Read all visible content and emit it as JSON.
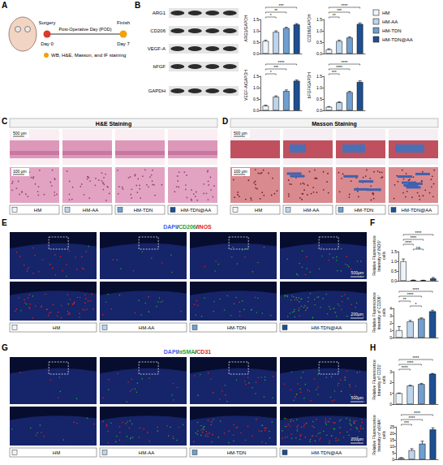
{
  "figure": {
    "panel_A": {
      "letter": "A",
      "start_event": "Surgery",
      "timeline": "Post-Operative Day (POD)",
      "end_event": "Finish",
      "start_day": "Day 0",
      "end_day": "Day 7",
      "assays": "WB, H&E, Masson, and IF staining"
    },
    "panel_B": {
      "letter": "B",
      "blot_rows": [
        "ARG1",
        "CD206",
        "VEGF-A",
        "bFGF",
        "GAPDH"
      ]
    },
    "legend": [
      {
        "name": "HM",
        "color": "#eef4fb"
      },
      {
        "name": "HM-AA",
        "color": "#bcd4ec"
      },
      {
        "name": "HM-TDN",
        "color": "#6f9fd0"
      },
      {
        "name": "HM-TDN@AA",
        "color": "#1d4f91"
      }
    ],
    "panel_C": {
      "letter": "C",
      "title": "H&E Staining",
      "scale_bars": [
        "500 μm",
        "100 μm"
      ]
    },
    "panel_D": {
      "letter": "D",
      "title": "Masson Staining",
      "scale_bars": [
        "500 μm",
        "100 μm"
      ]
    },
    "panel_E": {
      "letter": "E",
      "title": [
        {
          "text": "DAPI",
          "color": "#3d5bff"
        },
        {
          "text": "/",
          "color": "#000000"
        },
        {
          "text": "CD206",
          "color": "#1fa32a"
        },
        {
          "text": "/",
          "color": "#000000"
        },
        {
          "text": "iNOS",
          "color": "#e0241b"
        }
      ],
      "scale_bars": [
        "500μm",
        "200μm"
      ]
    },
    "panel_F": {
      "letter": "F"
    },
    "panel_G": {
      "letter": "G",
      "title": [
        {
          "text": "DAPI",
          "color": "#3d5bff"
        },
        {
          "text": "/",
          "color": "#000000"
        },
        {
          "text": "αSMA",
          "color": "#1fa32a"
        },
        {
          "text": "/",
          "color": "#000000"
        },
        {
          "text": "CD31",
          "color": "#e0241b"
        }
      ],
      "scale_bars": [
        "500μm",
        "200μm"
      ]
    },
    "panel_H": {
      "letter": "H"
    }
  },
  "chart_data": [
    {
      "type": "bar",
      "y_label": "ARG1/GAPDH",
      "categories": [
        "HM",
        "HM-AA",
        "HM-TDN",
        "HM-TDN@AA"
      ],
      "values": [
        0.55,
        0.95,
        1.12,
        1.28
      ],
      "errors": [
        0.04,
        0.05,
        0.04,
        0.04
      ],
      "colors": [
        "#eef4fb",
        "#bcd4ec",
        "#6f9fd0",
        "#1d4f91"
      ],
      "ylim": [
        0,
        1.5
      ],
      "yticks": [
        {
          "value": 0,
          "label": "0.0"
        },
        {
          "value": 0.5,
          "label": "0.5"
        },
        {
          "value": 1,
          "label": "1.0"
        },
        {
          "value": 1.5,
          "label": "1.5"
        }
      ],
      "grid": false,
      "tick_labels": "y",
      "significance": [
        {
          "groups": [
            "HM",
            "HM-AA"
          ],
          "label": "*"
        },
        {
          "groups": [
            "HM",
            "HM-TDN"
          ],
          "label": "**"
        },
        {
          "groups": [
            "HM",
            "HM-TDN@AA"
          ],
          "label": "***"
        }
      ]
    },
    {
      "type": "bar",
      "y_label": "CD206/GAPDH",
      "categories": [
        "HM",
        "HM-AA",
        "HM-TDN",
        "HM-TDN@AA"
      ],
      "values": [
        0.18,
        0.55,
        0.7,
        1.3
      ],
      "errors": [
        0.03,
        0.04,
        0.04,
        0.05
      ],
      "colors": [
        "#eef4fb",
        "#bcd4ec",
        "#6f9fd0",
        "#1d4f91"
      ],
      "ylim": [
        0,
        1.5
      ],
      "yticks": [
        {
          "value": 0,
          "label": "0.0"
        },
        {
          "value": 0.5,
          "label": "0.5"
        },
        {
          "value": 1,
          "label": "1.0"
        },
        {
          "value": 1.5,
          "label": "1.5"
        }
      ],
      "grid": false,
      "tick_labels": "y",
      "significance": [
        {
          "groups": [
            "HM",
            "HM-AA"
          ],
          "label": "**"
        },
        {
          "groups": [
            "HM",
            "HM-TDN"
          ],
          "label": "***"
        },
        {
          "groups": [
            "HM",
            "HM-TDN@AA"
          ],
          "label": "****"
        }
      ]
    },
    {
      "type": "bar",
      "y_label": "VEGF-A/GAPDH",
      "categories": [
        "HM",
        "HM-AA",
        "HM-TDN",
        "HM-TDN@AA"
      ],
      "values": [
        0.2,
        0.6,
        0.85,
        1.3
      ],
      "errors": [
        0.03,
        0.04,
        0.05,
        0.04
      ],
      "colors": [
        "#eef4fb",
        "#bcd4ec",
        "#6f9fd0",
        "#1d4f91"
      ],
      "ylim": [
        0,
        1.5
      ],
      "yticks": [
        {
          "value": 0,
          "label": "0.0"
        },
        {
          "value": 0.5,
          "label": "0.5"
        },
        {
          "value": 1,
          "label": "1.0"
        },
        {
          "value": 1.5,
          "label": "1.5"
        }
      ],
      "grid": false,
      "tick_labels": "y",
      "significance": [
        {
          "groups": [
            "HM",
            "HM-AA"
          ],
          "label": "*"
        },
        {
          "groups": [
            "HM",
            "HM-TDN"
          ],
          "label": "***"
        },
        {
          "groups": [
            "HM",
            "HM-TDN@AA"
          ],
          "label": "****"
        }
      ]
    },
    {
      "type": "bar",
      "y_label": "bFGF/GAPDH",
      "categories": [
        "HM",
        "HM-AA",
        "HM-TDN",
        "HM-TDN@AA"
      ],
      "values": [
        0.15,
        0.35,
        0.8,
        1.25
      ],
      "errors": [
        0.02,
        0.03,
        0.04,
        0.05
      ],
      "colors": [
        "#eef4fb",
        "#bcd4ec",
        "#6f9fd0",
        "#1d4f91"
      ],
      "ylim": [
        0,
        1.5
      ],
      "yticks": [
        {
          "value": 0,
          "label": "0.0"
        },
        {
          "value": 0.5,
          "label": "0.5"
        },
        {
          "value": 1,
          "label": "1.0"
        },
        {
          "value": 1.5,
          "label": "1.5"
        }
      ],
      "grid": false,
      "tick_labels": "y",
      "significance": [
        {
          "groups": [
            "HM",
            "HM-AA"
          ],
          "label": "***"
        },
        {
          "groups": [
            "HM",
            "HM-TDN"
          ],
          "label": "****"
        },
        {
          "groups": [
            "HM",
            "HM-TDN@AA"
          ],
          "label": "****"
        }
      ]
    },
    {
      "type": "bar",
      "y_label": "Relative Fluorescence Intensity of iNOS⁺ cells",
      "categories": [
        "HM",
        "HM-AA",
        "HM-TDN",
        "HM-TDN@AA"
      ],
      "values": [
        1.0,
        0.03,
        0.02,
        0.12
      ],
      "errors": [
        0.12,
        0.01,
        0.01,
        0.05
      ],
      "colors": [
        "#eef4fb",
        "#bcd4ec",
        "#6f9fd0",
        "#1d4f91"
      ],
      "ylim": [
        0,
        1.5
      ],
      "yticks": [
        {
          "value": 0,
          "label": "0.0"
        },
        {
          "value": 0.5,
          "label": "0.5"
        },
        {
          "value": 1,
          "label": "1.0"
        },
        {
          "value": 1.5,
          "label": "1.5"
        }
      ],
      "grid": false,
      "tick_labels": "y",
      "significance": [
        {
          "groups": [
            "HM-AA",
            "HM-TDN"
          ],
          "label": "ns"
        },
        {
          "groups": [
            "HM",
            "HM-AA"
          ],
          "label": "****"
        },
        {
          "groups": [
            "HM",
            "HM-TDN"
          ],
          "label": "****"
        },
        {
          "groups": [
            "HM",
            "HM-TDN@AA"
          ],
          "label": "****"
        }
      ]
    },
    {
      "type": "bar",
      "y_label": "Relative Fluorescence Intensity of CD206⁺ cells",
      "categories": [
        "HM",
        "HM-AA",
        "HM-TDN",
        "HM-TDN@AA"
      ],
      "values": [
        1.0,
        2.2,
        2.6,
        3.6
      ],
      "errors": [
        0.5,
        0.15,
        0.1,
        0.15
      ],
      "colors": [
        "#eef4fb",
        "#bcd4ec",
        "#6f9fd0",
        "#1d4f91"
      ],
      "ylim": [
        0,
        4
      ],
      "yticks": [
        0,
        1,
        2,
        3,
        4
      ],
      "grid": false,
      "tick_labels": "y",
      "significance": [
        {
          "groups": [
            "HM-AA",
            "HM-TDN"
          ],
          "label": "*"
        },
        {
          "groups": [
            "HM",
            "HM-AA"
          ],
          "label": "**"
        },
        {
          "groups": [
            "HM",
            "HM-TDN"
          ],
          "label": "****"
        },
        {
          "groups": [
            "HM",
            "HM-TDN@AA"
          ],
          "label": "****"
        }
      ]
    },
    {
      "type": "bar",
      "y_label": "Relative Fluorescence Intensity of CD31⁺ cells",
      "categories": [
        "HM",
        "HM-AA",
        "HM-TDN",
        "HM-TDN@AA"
      ],
      "values": [
        1.0,
        1.7,
        1.85,
        2.8
      ],
      "errors": [
        0.03,
        0.05,
        0.07,
        0.04
      ],
      "colors": [
        "#eef4fb",
        "#bcd4ec",
        "#6f9fd0",
        "#1d4f91"
      ],
      "ylim": [
        0,
        3
      ],
      "yticks": [
        0,
        1,
        2,
        3
      ],
      "grid": false,
      "tick_labels": "y",
      "significance": [
        {
          "groups": [
            "HM",
            "HM-AA"
          ],
          "label": "****"
        },
        {
          "groups": [
            "HM",
            "HM-TDN"
          ],
          "label": "****"
        },
        {
          "groups": [
            "HM",
            "HM-TDN@AA"
          ],
          "label": "****"
        }
      ]
    },
    {
      "type": "bar",
      "y_label": "Relative Fluorescence Intensity of αSMA⁺ cells",
      "categories": [
        "HM",
        "HM-AA",
        "HM-TDN",
        "HM-TDN@AA"
      ],
      "values": [
        1,
        7,
        12,
        23
      ],
      "errors": [
        0.4,
        1.2,
        2,
        1.3
      ],
      "colors": [
        "#eef4fb",
        "#bcd4ec",
        "#6f9fd0",
        "#1d4f91"
      ],
      "ylim": [
        0,
        25
      ],
      "yticks": [
        0,
        5,
        10,
        15,
        20,
        25
      ],
      "grid": false,
      "tick_labels": "y",
      "significance": [
        {
          "groups": [
            "HM",
            "HM-AA"
          ],
          "label": "***"
        },
        {
          "groups": [
            "HM",
            "HM-TDN"
          ],
          "label": "****"
        },
        {
          "groups": [
            "HM",
            "HM-TDN@AA"
          ],
          "label": "****"
        }
      ]
    }
  ]
}
